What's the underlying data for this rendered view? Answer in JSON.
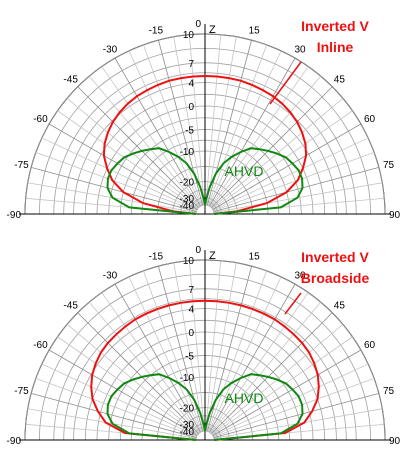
{
  "colors": {
    "inverted_v": "#ee1111",
    "ahvd": "#118811",
    "grid": "#a0a0a0",
    "circle_bg": "#ffffff"
  },
  "chart_data": [
    {
      "type": "polar-elevation",
      "title": "",
      "axis_label": "Z",
      "angle_ticks": [
        -90,
        -75,
        -60,
        -45,
        -30,
        -15,
        0,
        15,
        30,
        45,
        60,
        75,
        90
      ],
      "radial_ticks": [
        10,
        7,
        4,
        0,
        -5,
        -10,
        -20,
        -30,
        -40
      ],
      "radial_range_dBi": [
        -40,
        10
      ],
      "annotations": [
        {
          "text": "Inverted V",
          "color": "red"
        },
        {
          "text": "Inline",
          "color": "red"
        },
        {
          "text": "AHVD",
          "color": "green"
        }
      ],
      "series": [
        {
          "name": "Inverted V Inline",
          "elevation_deg": [
            -90,
            -85,
            -80,
            -75,
            -70,
            -65,
            -60,
            -55,
            -50,
            -45,
            -40,
            -35,
            -30,
            -25,
            -20,
            -15,
            -10,
            -5,
            0,
            5,
            10,
            15,
            20,
            25,
            30,
            35,
            40,
            45,
            50,
            55,
            60,
            65,
            70,
            75,
            80,
            85,
            90
          ],
          "gain_dBi": [
            -40,
            -20,
            -10,
            -5,
            -2,
            0,
            1.5,
            2.5,
            3.2,
            3.8,
            4.2,
            4.5,
            4.7,
            4.8,
            4.9,
            5,
            5,
            5,
            5,
            5,
            5,
            5,
            4.9,
            4.8,
            4.7,
            4.5,
            4.2,
            3.8,
            3.2,
            2.5,
            1.5,
            0,
            -2,
            -5,
            -10,
            -20,
            -40
          ]
        },
        {
          "name": "AHVD",
          "elevation_deg": [
            -90,
            -85,
            -80,
            -75,
            -70,
            -65,
            -60,
            -55,
            -50,
            -45,
            -40,
            -35,
            -30,
            -25,
            -20,
            -15,
            -10,
            -5,
            0,
            5,
            10,
            15,
            20,
            25,
            30,
            35,
            40,
            45,
            50,
            55,
            60,
            65,
            70,
            75,
            80,
            85,
            90
          ],
          "gain_dBi": [
            -40,
            -7,
            -3,
            -1.5,
            -1,
            -1,
            -1.5,
            -2,
            -3,
            -4,
            -5,
            -6,
            -8,
            -10,
            -13,
            -17,
            -23,
            -31,
            -40,
            -31,
            -23,
            -17,
            -13,
            -10,
            -8,
            -6,
            -5,
            -4,
            -3,
            -2,
            -1.5,
            -1,
            -1,
            -1.5,
            -3,
            -7,
            -40
          ]
        }
      ]
    },
    {
      "type": "polar-elevation",
      "title": "",
      "axis_label": "Z",
      "angle_ticks": [
        -90,
        -75,
        -60,
        -45,
        -30,
        -15,
        0,
        15,
        30,
        45,
        60,
        75,
        90
      ],
      "radial_ticks": [
        10,
        7,
        4,
        0,
        -5,
        -10,
        -20,
        -30,
        -40
      ],
      "radial_range_dBi": [
        -40,
        10
      ],
      "annotations": [
        {
          "text": "Inverted V",
          "color": "red"
        },
        {
          "text": "Broadside",
          "color": "red"
        },
        {
          "text": "AHVD",
          "color": "green"
        }
      ],
      "series": [
        {
          "name": "Inverted V Broadside",
          "elevation_deg": [
            -90,
            -85,
            -80,
            -75,
            -70,
            -65,
            -60,
            -55,
            -50,
            -45,
            -40,
            -35,
            -30,
            -25,
            -20,
            -15,
            -10,
            -5,
            0,
            5,
            10,
            15,
            20,
            25,
            30,
            35,
            40,
            45,
            50,
            55,
            60,
            65,
            70,
            75,
            80,
            85,
            90
          ],
          "gain_dBi": [
            -40,
            -6,
            -1.5,
            0.5,
            2,
            3,
            3.8,
            4.3,
            4.7,
            4.9,
            5,
            5.1,
            5.2,
            5.2,
            5.2,
            5.2,
            5.2,
            5.2,
            5.2,
            5.2,
            5.2,
            5.2,
            5.2,
            5.2,
            5.2,
            5.1,
            5,
            4.9,
            4.7,
            4.3,
            3.8,
            3,
            2,
            0.5,
            -1.5,
            -6,
            -40
          ]
        },
        {
          "name": "AHVD",
          "elevation_deg": [
            -90,
            -85,
            -80,
            -75,
            -70,
            -65,
            -60,
            -55,
            -50,
            -45,
            -40,
            -35,
            -30,
            -25,
            -20,
            -15,
            -10,
            -5,
            0,
            5,
            10,
            15,
            20,
            25,
            30,
            35,
            40,
            45,
            50,
            55,
            60,
            65,
            70,
            75,
            80,
            85,
            90
          ],
          "gain_dBi": [
            -40,
            -7,
            -3,
            -1.5,
            -1,
            -1,
            -1.5,
            -2,
            -3,
            -4,
            -5,
            -6,
            -8,
            -10,
            -13,
            -17,
            -23,
            -31,
            -40,
            -31,
            -23,
            -17,
            -13,
            -10,
            -8,
            -6,
            -5,
            -4,
            -3,
            -2,
            -1.5,
            -1,
            -1,
            -1.5,
            -3,
            -7,
            -40
          ]
        }
      ]
    }
  ]
}
